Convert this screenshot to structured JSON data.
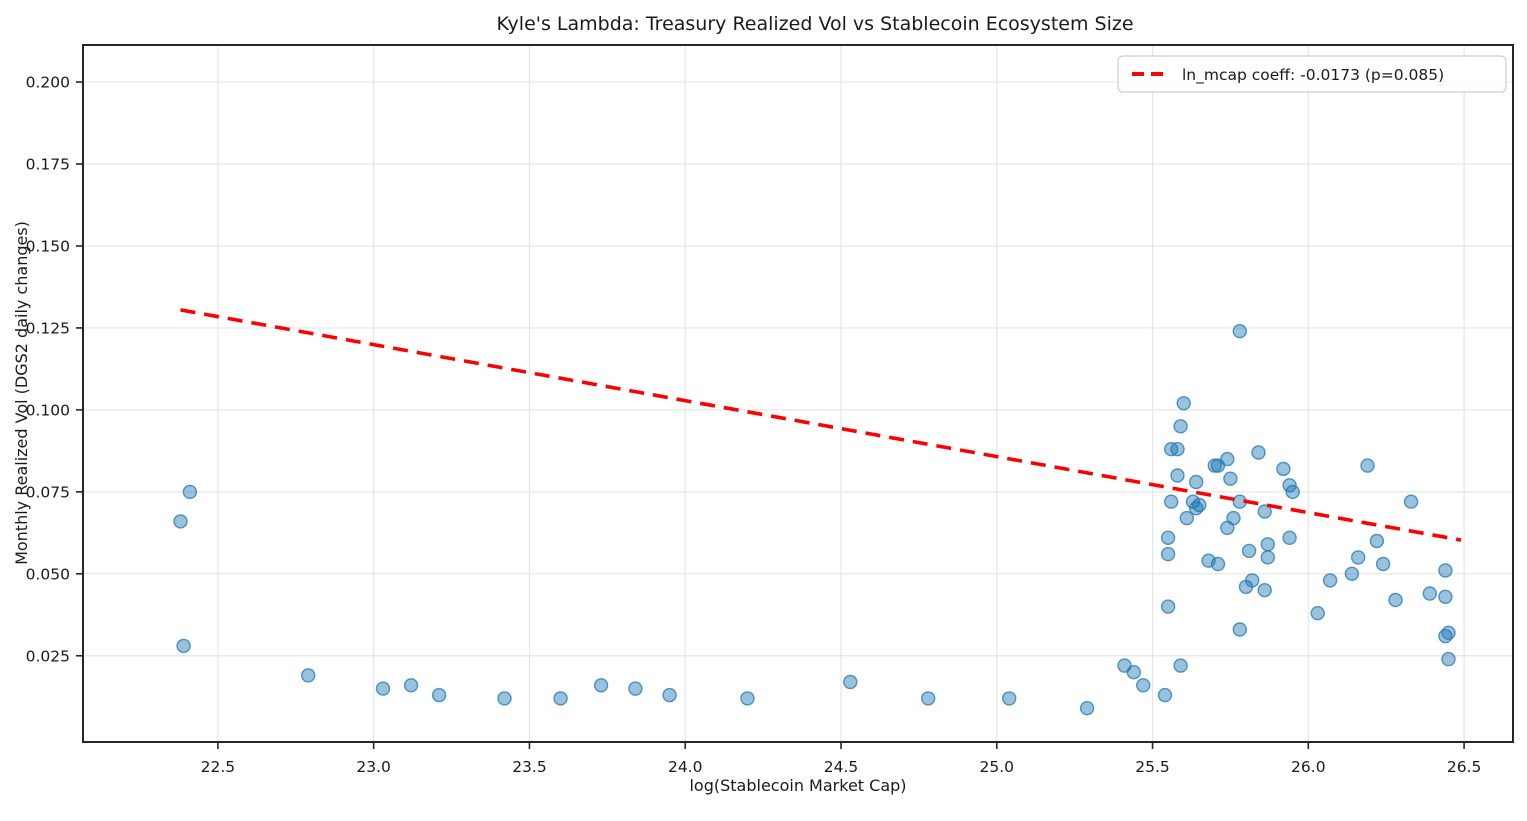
{
  "title": "Kyle's Lambda: Treasury Realized Vol vs Stablecoin Ecosystem Size",
  "legend": {
    "label": "ln_mcap coeff: -0.0173 (p=0.085)",
    "line_color": "#ff0000",
    "position": "upper right"
  },
  "chart_data": {
    "type": "scatter",
    "title": "Kyle's Lambda: Treasury Realized Vol vs Stablecoin Ecosystem Size",
    "xlabel": "log(Stablecoin Market Cap)",
    "ylabel": "Monthly Realized Vol (DGS2 daily changes)",
    "xlim": [
      22.067,
      26.657
    ],
    "ylim": [
      -0.0013,
      0.2113
    ],
    "xticks": [
      22.5,
      23.0,
      23.5,
      24.0,
      24.5,
      25.0,
      25.5,
      26.0,
      26.5
    ],
    "yticks": [
      0.025,
      0.05,
      0.075,
      0.1,
      0.125,
      0.15,
      0.175,
      0.2
    ],
    "grid": true,
    "grid_color": "#e6e6e6",
    "point_color": "#1f77b4",
    "point_alpha": 0.45,
    "points": [
      [
        22.38,
        0.066
      ],
      [
        22.41,
        0.075
      ],
      [
        22.39,
        0.028
      ],
      [
        22.79,
        0.019
      ],
      [
        23.03,
        0.015
      ],
      [
        23.12,
        0.016
      ],
      [
        23.21,
        0.013
      ],
      [
        23.42,
        0.012
      ],
      [
        23.6,
        0.012
      ],
      [
        23.73,
        0.016
      ],
      [
        23.84,
        0.015
      ],
      [
        23.95,
        0.013
      ],
      [
        24.2,
        0.012
      ],
      [
        24.53,
        0.017
      ],
      [
        24.78,
        0.012
      ],
      [
        25.04,
        0.012
      ],
      [
        25.29,
        0.009
      ],
      [
        25.41,
        0.022
      ],
      [
        25.44,
        0.02
      ],
      [
        25.47,
        0.016
      ],
      [
        25.54,
        0.013
      ],
      [
        25.59,
        0.022
      ],
      [
        25.78,
        0.124
      ],
      [
        25.6,
        0.102
      ],
      [
        25.59,
        0.095
      ],
      [
        25.56,
        0.088
      ],
      [
        25.58,
        0.088
      ],
      [
        25.7,
        0.083
      ],
      [
        25.71,
        0.083
      ],
      [
        25.74,
        0.085
      ],
      [
        25.84,
        0.087
      ],
      [
        25.58,
        0.08
      ],
      [
        25.64,
        0.078
      ],
      [
        25.75,
        0.079
      ],
      [
        26.19,
        0.083
      ],
      [
        25.92,
        0.082
      ],
      [
        25.94,
        0.077
      ],
      [
        25.95,
        0.075
      ],
      [
        25.56,
        0.072
      ],
      [
        25.63,
        0.072
      ],
      [
        25.65,
        0.071
      ],
      [
        25.64,
        0.07
      ],
      [
        25.78,
        0.072
      ],
      [
        25.86,
        0.069
      ],
      [
        25.61,
        0.067
      ],
      [
        25.76,
        0.067
      ],
      [
        25.74,
        0.064
      ],
      [
        26.33,
        0.072
      ],
      [
        25.55,
        0.061
      ],
      [
        25.55,
        0.056
      ],
      [
        25.68,
        0.054
      ],
      [
        25.71,
        0.053
      ],
      [
        25.81,
        0.057
      ],
      [
        25.87,
        0.059
      ],
      [
        25.87,
        0.055
      ],
      [
        25.94,
        0.061
      ],
      [
        26.22,
        0.06
      ],
      [
        26.16,
        0.055
      ],
      [
        26.24,
        0.053
      ],
      [
        25.82,
        0.048
      ],
      [
        25.8,
        0.046
      ],
      [
        25.86,
        0.045
      ],
      [
        26.07,
        0.048
      ],
      [
        26.14,
        0.05
      ],
      [
        26.44,
        0.051
      ],
      [
        26.39,
        0.044
      ],
      [
        26.44,
        0.043
      ],
      [
        26.28,
        0.042
      ],
      [
        25.55,
        0.04
      ],
      [
        26.03,
        0.038
      ],
      [
        25.78,
        0.033
      ],
      [
        26.45,
        0.032
      ],
      [
        26.44,
        0.031
      ],
      [
        26.45,
        0.024
      ]
    ],
    "trend_line": {
      "label": "ln_mcap coeff: -0.0173 (p=0.085)",
      "color": "#ff0000",
      "style": "dashed",
      "x": [
        22.38,
        26.49
      ],
      "y": [
        0.1305,
        0.0603
      ]
    }
  }
}
